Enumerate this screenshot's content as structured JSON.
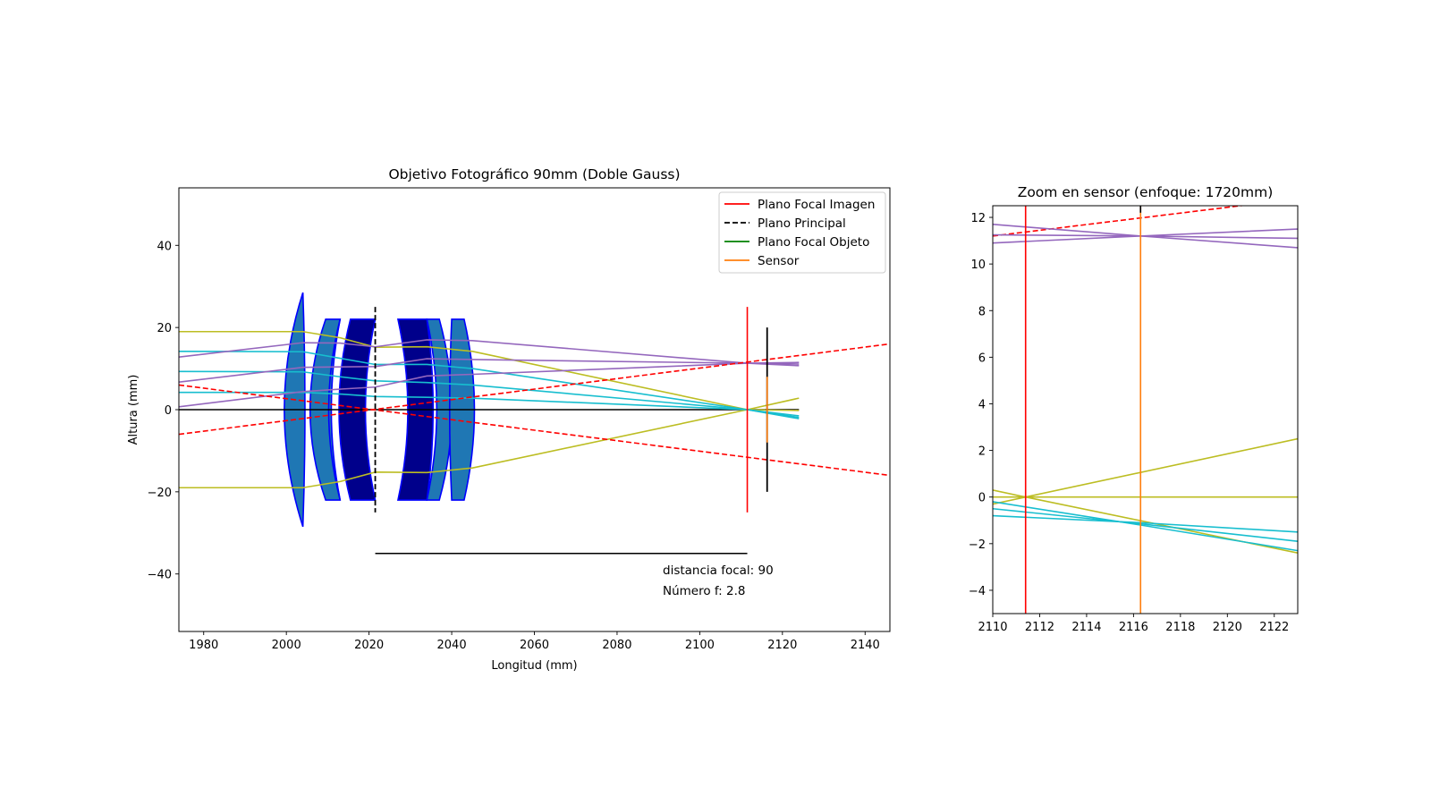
{
  "chart_data": [
    {
      "type": "line",
      "title": "Objetivo Fotográfico 90mm (Doble Gauss)",
      "xlabel": "Longitud (mm)",
      "ylabel": "Altura (mm)",
      "xlim": [
        1974,
        2146
      ],
      "ylim": [
        -54,
        54
      ],
      "xticks": [
        1980,
        2000,
        2020,
        2040,
        2060,
        2080,
        2100,
        2120,
        2140
      ],
      "yticks": [
        -40,
        -20,
        0,
        20,
        40
      ],
      "grid": false,
      "legend_position": "upper right",
      "legend": [
        {
          "label": "Plano Focal Imagen",
          "color": "#ff0000",
          "dash": false
        },
        {
          "label": "Plano Principal",
          "color": "#000000",
          "dash": true
        },
        {
          "label": "Plano Focal Objeto",
          "color": "#008000",
          "dash": false
        },
        {
          "label": "Sensor",
          "color": "#ff7f0e",
          "dash": false
        }
      ],
      "annotations": [
        "distancia focal: 90",
        "Número f: 2.8"
      ],
      "lenses": [
        {
          "shape": "biconvex",
          "x_left": 1999.5,
          "x_right": 2004.5,
          "x_left_edge": 2004,
          "x_right_edge": 2004,
          "semi": 28.5,
          "fill": "#1f77b4"
        },
        {
          "shape": "meniscus",
          "x_left": 2005,
          "x_right": 2013,
          "x_left_edge": 2009.5,
          "x_right_edge": 2013,
          "semi": 22,
          "fill": "#1f77b4"
        },
        {
          "shape": "meniscus",
          "x_left": 2010.5,
          "x_right": 2013.5,
          "x_left_edge": 2013,
          "x_right_edge": 2013,
          "semi": 22,
          "fill": "#1f77b4"
        },
        {
          "shape": "concave",
          "x_left": 2013,
          "x_right": 2021.5,
          "x_left_edge": 2015.5,
          "x_right_edge": 2021.5,
          "semi": 22,
          "fill": "#00008b"
        },
        {
          "shape": "concave",
          "x_left": 2027,
          "x_right": 2034,
          "x_left_edge": 2027,
          "x_right_edge": 2034,
          "semi": 22,
          "fill": "#00008b"
        },
        {
          "shape": "meniscus-r",
          "x_left": 2034,
          "x_right": 2040,
          "x_left_edge": 2034,
          "x_right_edge": 2037,
          "semi": 22,
          "fill": "#1f77b4"
        },
        {
          "shape": "biconvex",
          "x_left": 2039.5,
          "x_right": 2045.5,
          "x_left_edge": 2040,
          "x_right_edge": 2043,
          "semi": 22,
          "fill": "#1f77b4"
        }
      ],
      "optical_axis": {
        "x": [
          1974,
          2124
        ],
        "y": [
          0,
          0
        ],
        "color": "#000000"
      },
      "principal_plane": {
        "x": 2021.5,
        "y": [
          -25,
          25
        ],
        "color": "#000000",
        "dash": true
      },
      "focal_plane": {
        "x": 2111.5,
        "y": [
          -25,
          25
        ],
        "color": "#ff0000"
      },
      "sensor": {
        "x": 2116.3,
        "y": [
          -20,
          20
        ],
        "color": "#ff7f0e",
        "marker_color": "#000000"
      },
      "focal_bar": {
        "x": [
          2021.5,
          2111.5
        ],
        "y": -35,
        "color": "#000000"
      },
      "series": [
        {
          "color": "#bcbd22",
          "x": [
            1974,
            2004,
            2013,
            2021.5,
            2034,
            2045,
            2111.5,
            2124
          ],
          "y": [
            19,
            19,
            17.5,
            15.2,
            15.3,
            14.2,
            0,
            -0.2
          ]
        },
        {
          "color": "#bcbd22",
          "x": [
            1974,
            2004,
            2013,
            2021.5,
            2034,
            2045,
            2111.5,
            2124
          ],
          "y": [
            -19,
            -19,
            -17.5,
            -15.2,
            -15.3,
            -14.2,
            0,
            2.8
          ]
        },
        {
          "color": "#17becf",
          "x": [
            1974,
            2004,
            2013,
            2021.5,
            2034,
            2045,
            2111.5,
            2124
          ],
          "y": [
            14.2,
            14.1,
            12.5,
            11,
            11,
            10,
            0,
            -2.2
          ]
        },
        {
          "color": "#17becf",
          "x": [
            1974,
            2004,
            2013,
            2021.5,
            2034,
            2045,
            2111.5,
            2124
          ],
          "y": [
            9.3,
            9.2,
            8,
            7,
            6.6,
            6,
            0,
            -1.9
          ]
        },
        {
          "color": "#17becf",
          "x": [
            1974,
            2004,
            2013,
            2021.5,
            2034,
            2045,
            2111.5,
            2124
          ],
          "y": [
            4.2,
            4.2,
            3.8,
            3.2,
            3,
            2.8,
            0,
            -1.5
          ]
        },
        {
          "color": "#9467bd",
          "x": [
            1974,
            2004,
            2013,
            2021.5,
            2034,
            2045,
            2111.5,
            2124
          ],
          "y": [
            12.8,
            16.3,
            16.2,
            15.3,
            17,
            16.8,
            11.3,
            10.7
          ]
        },
        {
          "color": "#9467bd",
          "x": [
            1974,
            2004,
            2013,
            2021.5,
            2034,
            2045,
            2111.5,
            2124
          ],
          "y": [
            6.7,
            10.3,
            10.4,
            10.5,
            12.4,
            12.2,
            11.3,
            11.1
          ]
        },
        {
          "color": "#9467bd",
          "x": [
            1974,
            2004,
            2013,
            2021.5,
            2034,
            2045,
            2111.5,
            2124
          ],
          "y": [
            0.7,
            4.4,
            5,
            5.5,
            8.2,
            8.6,
            11.3,
            11.5
          ]
        },
        {
          "color": "#ff0000",
          "dash": true,
          "x": [
            1974,
            2146
          ],
          "y": [
            -6,
            16
          ]
        },
        {
          "color": "#ff0000",
          "dash": true,
          "x": [
            1974,
            2146
          ],
          "y": [
            6,
            -16
          ]
        }
      ]
    },
    {
      "type": "line",
      "title": "Zoom en sensor (enfoque: 1720mm)",
      "xlim": [
        2110,
        2123
      ],
      "ylim": [
        -5,
        12.5
      ],
      "xticks": [
        2110,
        2112,
        2114,
        2116,
        2118,
        2120,
        2122
      ],
      "yticks": [
        -4,
        -2,
        0,
        2,
        4,
        6,
        8,
        10,
        12
      ],
      "grid": false,
      "vlines": [
        {
          "x": 2111.4,
          "color": "#ff0000"
        },
        {
          "x": 2116.3,
          "color": "#ff7f0e"
        },
        {
          "x": 2116.3,
          "y": [
            12.2,
            12.5
          ],
          "color": "#000000"
        }
      ],
      "series": [
        {
          "color": "#ff0000",
          "dash": true,
          "x": [
            2110,
            2123
          ],
          "y": [
            11.2,
            12.8
          ]
        },
        {
          "color": "#9467bd",
          "x": [
            2110,
            2116.3,
            2123
          ],
          "y": [
            11.7,
            11.2,
            10.7
          ]
        },
        {
          "color": "#9467bd",
          "x": [
            2110,
            2116.3,
            2123
          ],
          "y": [
            11.25,
            11.2,
            11.1
          ]
        },
        {
          "color": "#9467bd",
          "x": [
            2110,
            2116.3,
            2123
          ],
          "y": [
            10.9,
            11.2,
            11.5
          ]
        },
        {
          "color": "#bcbd22",
          "x": [
            2110,
            2111.4,
            2123
          ],
          "y": [
            0.3,
            0,
            2.5
          ]
        },
        {
          "color": "#bcbd22",
          "x": [
            2110,
            2123
          ],
          "y": [
            0,
            0
          ]
        },
        {
          "color": "#bcbd22",
          "x": [
            2110,
            2111.4,
            2123
          ],
          "y": [
            -0.3,
            0,
            -2.4
          ]
        },
        {
          "color": "#17becf",
          "x": [
            2110,
            2116.3,
            2123
          ],
          "y": [
            -0.2,
            -1.2,
            -2.3
          ]
        },
        {
          "color": "#17becf",
          "x": [
            2110,
            2116.3,
            2123
          ],
          "y": [
            -0.5,
            -1.15,
            -1.9
          ]
        },
        {
          "color": "#17becf",
          "x": [
            2110,
            2116.3,
            2123
          ],
          "y": [
            -0.8,
            -1.1,
            -1.5
          ]
        }
      ]
    }
  ]
}
